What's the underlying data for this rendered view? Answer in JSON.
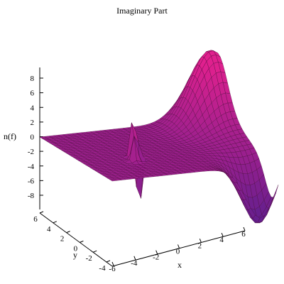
{
  "chart_data": {
    "type": "surface3d",
    "title": "Imaginary Part",
    "xlabel": "x",
    "ylabel": "y",
    "zlabel": "n(f)",
    "xlim": [
      -6,
      6
    ],
    "ylim": [
      -4,
      6
    ],
    "zlim": [
      -9,
      9
    ],
    "x_ticks": [
      "-6",
      "-4",
      "-2",
      "0",
      "2",
      "4",
      "6"
    ],
    "y_ticks": [
      "6",
      "4",
      "2",
      "0",
      "-2",
      "-4"
    ],
    "z_ticks": [
      "8",
      "6",
      "4",
      "2",
      "0",
      "-2",
      "-4",
      "-6",
      "-8"
    ],
    "features": [
      {
        "name": "left-spike",
        "x": -2.2,
        "y": 0.2,
        "z_max": 8.0,
        "z_min": -9.0
      },
      {
        "name": "small-spike",
        "x": -2.6,
        "y": -0.6,
        "z_max": 4.0
      },
      {
        "name": "right-peak",
        "x": 5.5,
        "y": 4.5,
        "z_max": 9.0
      },
      {
        "name": "right-trough",
        "x": 5.0,
        "y": -3.5,
        "z_min": -9.0
      },
      {
        "name": "right-edge-rise",
        "x": 6.0,
        "y": -4.0,
        "z_max": 3.5
      }
    ],
    "colors": {
      "surface_low": "#5a1f8e",
      "surface_high": "#e0208e",
      "mesh": "#4a0a3a"
    }
  }
}
